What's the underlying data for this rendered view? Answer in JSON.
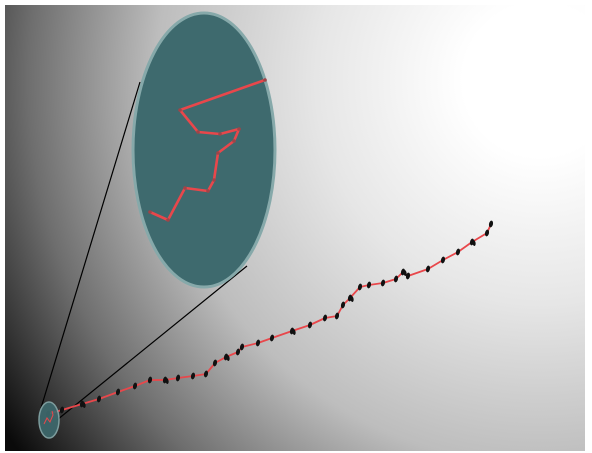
{
  "colors": {
    "background_dark": "#000000",
    "background_light": "#ffffff",
    "path_line": "#e8474b",
    "marker": "#111111",
    "magnifier_fill": "#3e6a6e",
    "magnifier_edge": "#86a9aa",
    "connector_line": "#000000"
  },
  "icons": {
    "marker_shape": "small-black-ellipse-node",
    "magnifier": "zoom-circle-lens"
  },
  "path": {
    "description_visible": false,
    "node_count": 40
  },
  "zoom": {
    "segments": 9
  }
}
